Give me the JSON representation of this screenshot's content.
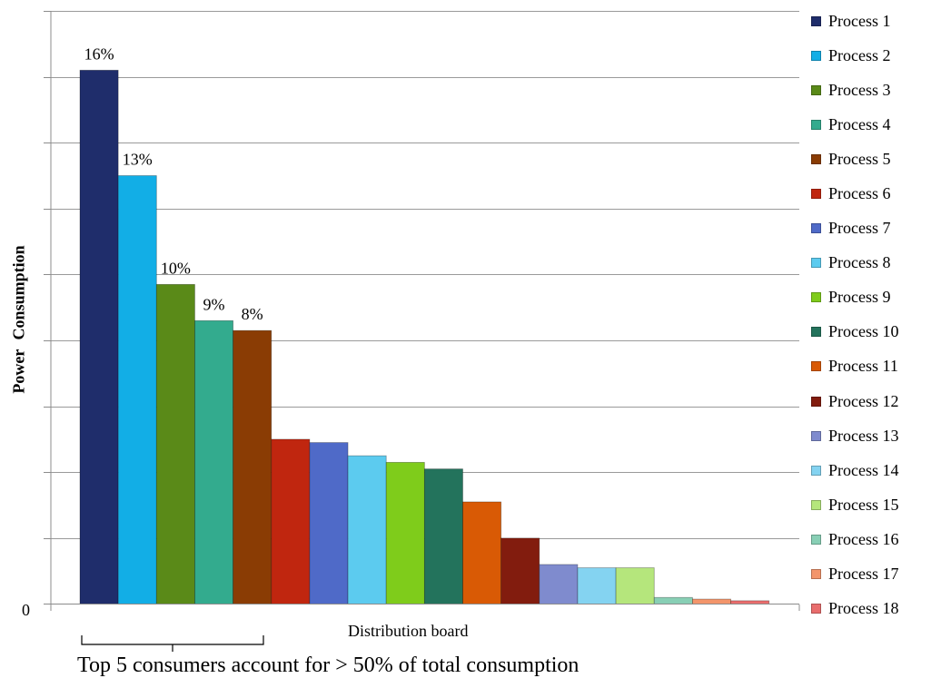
{
  "chart_data": {
    "type": "bar",
    "xlabel": "Distribution board",
    "ylabel": "Power  Consumption",
    "y_tick_labels": [
      "0"
    ],
    "ylim": [
      0,
      0.18
    ],
    "gridlines": true,
    "legend_position": "right",
    "categories": [
      "Process 1",
      "Process 2",
      "Process 3",
      "Process 4",
      "Process 5",
      "Process 6",
      "Process 7",
      "Process 8",
      "Process 9",
      "Process 10",
      "Process 11",
      "Process 12",
      "Process 13",
      "Process 14",
      "Process 15",
      "Process 16",
      "Process 17",
      "Process 18"
    ],
    "values": [
      0.162,
      0.13,
      0.097,
      0.086,
      0.083,
      0.05,
      0.049,
      0.045,
      0.043,
      0.041,
      0.031,
      0.02,
      0.012,
      0.011,
      0.011,
      0.002,
      0.0015,
      0.001
    ],
    "data_labels": [
      "16%",
      "13%",
      "10%",
      "9%",
      "8%",
      "",
      "",
      "",
      "",
      "",
      "",
      "",
      "",
      "",
      "",
      "",
      "",
      ""
    ],
    "colors": [
      "#1f2d6b",
      "#12aee6",
      "#5a8a18",
      "#33ab8e",
      "#8a3c04",
      "#c0260f",
      "#4f6ac8",
      "#5ccbef",
      "#7fcc1b",
      "#23735c",
      "#d95a05",
      "#821c0e",
      "#7f8bce",
      "#84d3f1",
      "#b5e67c",
      "#88cfb5",
      "#f3956b",
      "#e96d6d"
    ],
    "annotation": "Top 5 consumers account for > 50% of total consumption"
  }
}
